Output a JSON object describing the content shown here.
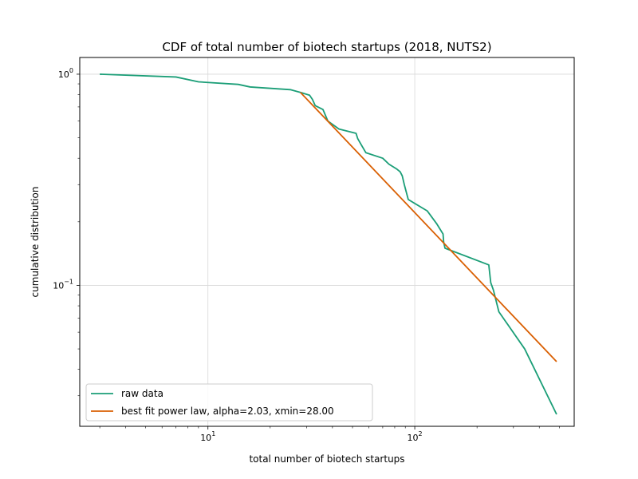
{
  "chart_data": {
    "type": "line",
    "title": "CDF of total number of biotech startups (2018, NUTS2)",
    "xlabel": "total number of biotech startups",
    "ylabel": "cumulative distribution",
    "xscale": "log",
    "yscale": "log",
    "xlim": [
      2.4,
      590
    ],
    "ylim": [
      0.0215,
      1.2
    ],
    "grid": true,
    "legend_position": "lower-left",
    "x_ticks": [
      {
        "value": 10,
        "base": "10",
        "exp": "1"
      },
      {
        "value": 100,
        "base": "10",
        "exp": "2"
      }
    ],
    "y_ticks": [
      {
        "value": 0.1,
        "base": "10",
        "exp": "−1"
      },
      {
        "value": 1,
        "base": "10",
        "exp": "0"
      }
    ],
    "series": [
      {
        "name": "raw data",
        "color": "#1b9e77",
        "x": [
          3,
          7,
          9,
          14,
          16,
          25,
          28,
          31,
          32,
          33,
          36,
          38,
          43,
          52,
          53,
          55,
          58,
          70,
          75,
          82,
          85,
          87,
          89,
          93,
          115,
          128,
          137,
          138,
          140,
          228,
          233,
          240,
          255,
          340,
          485
        ],
        "y": [
          1.0,
          0.97,
          0.92,
          0.895,
          0.87,
          0.845,
          0.82,
          0.795,
          0.76,
          0.71,
          0.68,
          0.6,
          0.55,
          0.525,
          0.495,
          0.465,
          0.425,
          0.4,
          0.375,
          0.355,
          0.345,
          0.33,
          0.3,
          0.255,
          0.225,
          0.195,
          0.175,
          0.16,
          0.15,
          0.125,
          0.103,
          0.095,
          0.075,
          0.05,
          0.0245
        ]
      },
      {
        "name": "best fit power law, alpha=2.03, xmin=28.00",
        "color": "#d95f02",
        "x": [
          28,
          485
        ],
        "y": [
          0.82,
          0.0435
        ]
      }
    ]
  }
}
